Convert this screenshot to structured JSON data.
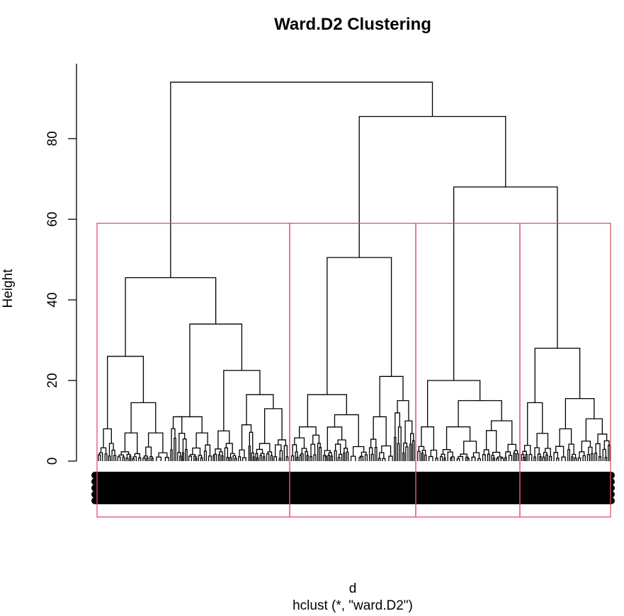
{
  "chart_data": {
    "type": "dendrogram",
    "title": "Ward.D2 Clustering",
    "xlabel": "d",
    "ylabel": "Height",
    "subtitle": "hclust (*, \"ward.D2\")",
    "y_ticks": [
      "0",
      "20",
      "40",
      "60",
      "80"
    ],
    "y_tick_values": [
      0,
      20,
      40,
      60,
      80
    ],
    "ylim": [
      0,
      95
    ],
    "colors": {
      "tree": "#000000",
      "cluster_box": "#df536b",
      "labels": "#000000"
    },
    "cut_height": 59,
    "clusters": 4,
    "merges": [
      {
        "height": 94,
        "joins": [
          "A",
          "BCD"
        ]
      },
      {
        "height": 85.5,
        "joins": [
          "B",
          "CD"
        ]
      },
      {
        "height": 68,
        "joins": [
          "C",
          "D"
        ]
      },
      {
        "height": 50.5,
        "joins": [
          "B1",
          "B2"
        ]
      },
      {
        "height": 45.5,
        "joins": [
          "A1",
          "A2"
        ]
      },
      {
        "height": 34,
        "joins": [
          "A2a",
          "A2b"
        ]
      },
      {
        "height": 28,
        "joins": [
          "D1",
          "D2"
        ]
      },
      {
        "height": 26,
        "joins": [
          "A1a",
          "A1b"
        ]
      },
      {
        "height": 22.5,
        "joins": [
          "A2b1",
          "A2b2"
        ]
      },
      {
        "height": 21,
        "joins": [
          "B2a",
          "B2b"
        ]
      },
      {
        "height": 20,
        "joins": [
          "C1",
          "C2"
        ]
      },
      {
        "height": 16.5,
        "joins": [
          "B1a",
          "B1b"
        ]
      },
      {
        "height": 15.5,
        "joins": [
          "D2a",
          "D2b"
        ]
      },
      {
        "height": 15,
        "joins": [
          "C2a",
          "C2b"
        ]
      },
      {
        "height": 14.5,
        "joins": [
          "A1b1",
          "A1b2"
        ]
      }
    ]
  }
}
